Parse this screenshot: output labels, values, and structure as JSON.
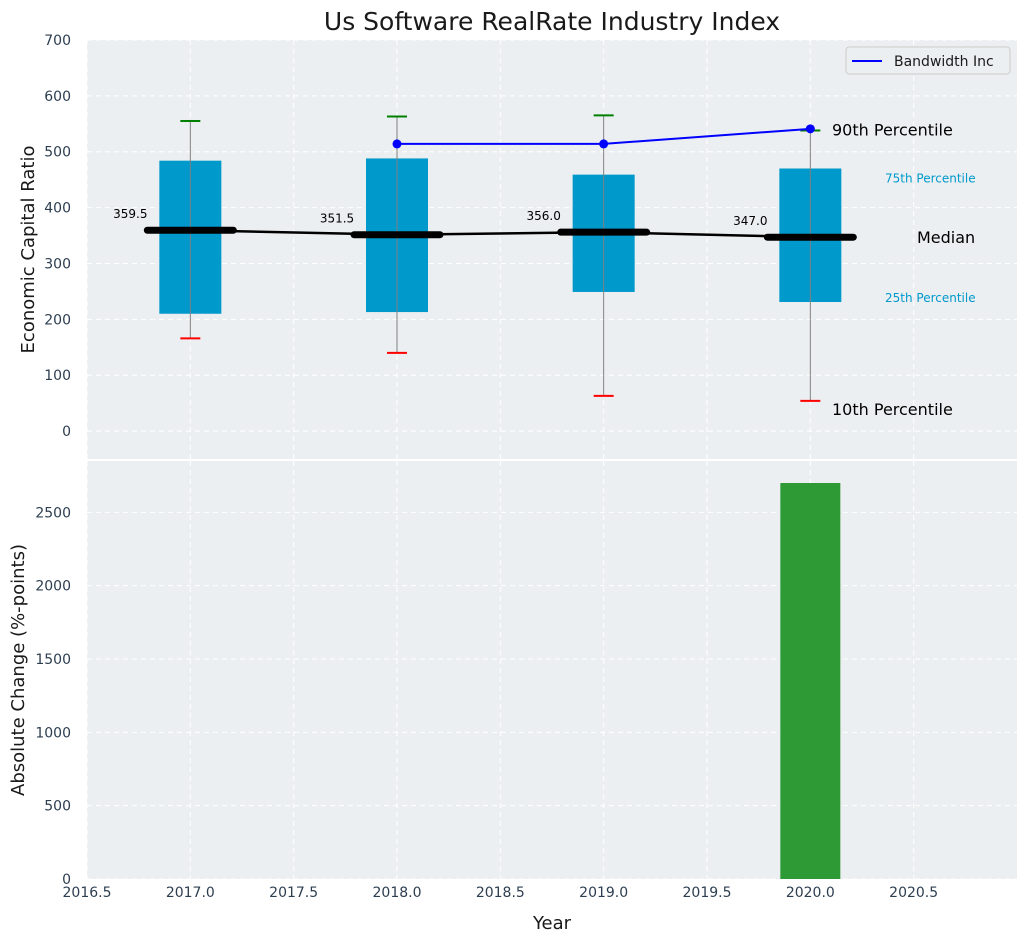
{
  "chart_data": [
    {
      "type": "box",
      "title": "Us Software RealRate Industry Index",
      "ylabel": "Economic Capital Ratio",
      "xlabel": "",
      "xlim": [
        2016.5,
        2021.0
      ],
      "ylim": [
        -50,
        700
      ],
      "yticks": [
        0,
        100,
        200,
        300,
        400,
        500,
        600,
        700
      ],
      "grid": true,
      "boxes": [
        {
          "x": 2017,
          "p10": 166,
          "p25": 210,
          "median": 359.5,
          "p75": 484,
          "p90": 555,
          "median_label": "359.5"
        },
        {
          "x": 2018,
          "p10": 140,
          "p25": 213,
          "median": 351.5,
          "p75": 488,
          "p90": 563,
          "median_label": "351.5"
        },
        {
          "x": 2019,
          "p10": 63,
          "p25": 249,
          "median": 356.0,
          "p75": 459,
          "p90": 565,
          "median_label": "356.0"
        },
        {
          "x": 2020,
          "p10": 54,
          "p25": 231,
          "median": 347.0,
          "p75": 470,
          "p90": 538,
          "median_label": "347.0"
        }
      ],
      "series": [
        {
          "name": "Bandwidth Inc",
          "x": [
            2018,
            2019,
            2020
          ],
          "values": [
            514,
            514,
            541
          ],
          "color": "#0000ff"
        }
      ],
      "legend": {
        "position": "top-right",
        "entries": [
          "Bandwidth Inc"
        ]
      },
      "annotations": {
        "p90": "90th Percentile",
        "p75": "75th Percentile",
        "median": "Median",
        "p25": "25th Percentile",
        "p10": "10th Percentile"
      },
      "colors": {
        "box": "#0099cc",
        "median": "#000000",
        "cap_top": "#008000",
        "cap_bottom": "#ff0000",
        "whisker": "#808080",
        "background": "#eceff1"
      }
    },
    {
      "type": "bar",
      "xlabel": "Year",
      "ylabel": "Absolute Change (%-points)",
      "xlim": [
        2016.5,
        2021.0
      ],
      "ylim": [
        0,
        2850
      ],
      "yticks": [
        0,
        500,
        1000,
        1500,
        2000,
        2500
      ],
      "xticks": [
        "2016.5",
        "2017.0",
        "2017.5",
        "2018.0",
        "2018.5",
        "2019.0",
        "2019.5",
        "2020.0",
        "2020.5"
      ],
      "grid": true,
      "bars": [
        {
          "x": 2020,
          "value": 2700,
          "color": "#2e9a35"
        }
      ]
    }
  ]
}
